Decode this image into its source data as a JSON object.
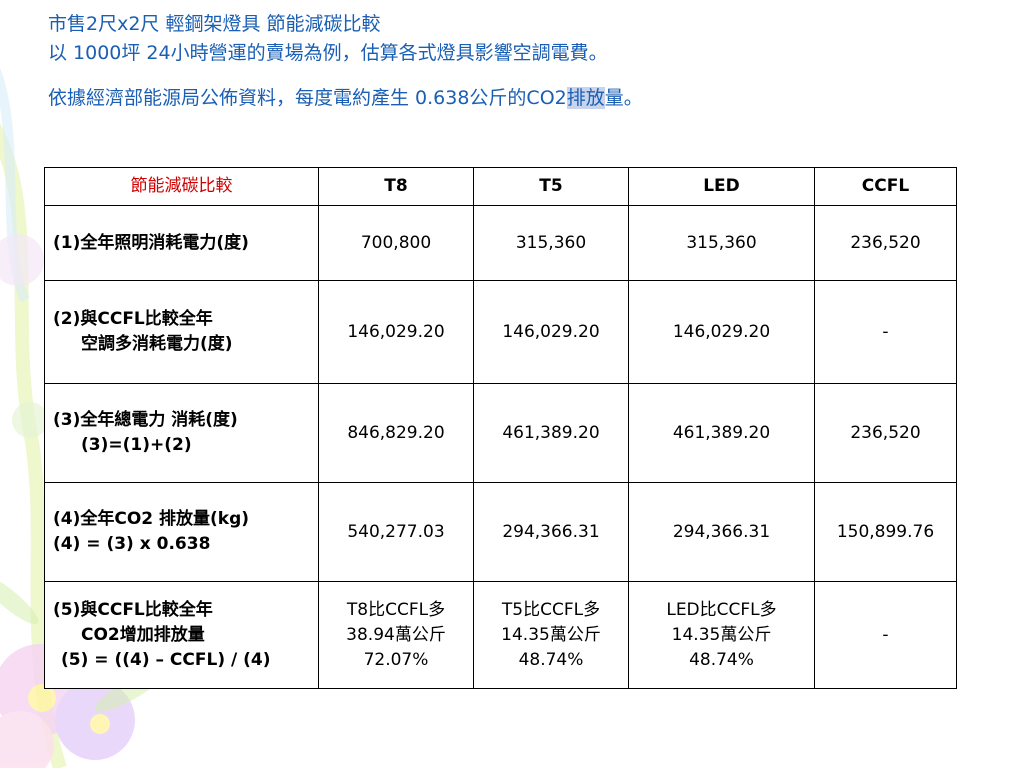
{
  "header": {
    "line1": "市售2尺x2尺 輕鋼架燈具  節能減碳比較",
    "line2": "以 1000坪 24小時營運的賣場為例，估算各式燈具影響空調電費。",
    "line3_pre": "依據經濟部能源局公佈資料，每度電約產生 0.638公斤的CO2",
    "line3_hl": "排放",
    "line3_post": "量。"
  },
  "table": {
    "corner": "節能減碳比較",
    "columns": [
      "T8",
      "T5",
      "LED",
      "CCFL"
    ],
    "rows": [
      {
        "label": [
          "(1)全年照明消耗電力(度)"
        ],
        "cells": [
          [
            "700,800"
          ],
          [
            "315,360"
          ],
          [
            "315,360"
          ],
          [
            "236,520"
          ]
        ]
      },
      {
        "label": [
          "(2)與CCFL比較全年",
          "空調多消耗電力(度)"
        ],
        "cells": [
          [
            "146,029.20"
          ],
          [
            "146,029.20"
          ],
          [
            "146,029.20"
          ],
          [
            "-"
          ]
        ]
      },
      {
        "label": [
          "(3)全年總電力 消耗(度)",
          "(3)=(1)+(2)"
        ],
        "cells": [
          [
            "846,829.20"
          ],
          [
            "461,389.20"
          ],
          [
            "461,389.20"
          ],
          [
            "236,520"
          ]
        ]
      },
      {
        "label": [
          "(4)全年CO2 排放量(kg)",
          "(4) = (3) x 0.638"
        ],
        "cells": [
          [
            "540,277.03"
          ],
          [
            "294,366.31"
          ],
          [
            "294,366.31"
          ],
          [
            "150,899.76"
          ]
        ]
      },
      {
        "label": [
          "(5)與CCFL比較全年",
          "CO2增加排放量",
          "(5) = ((4) – CCFL) / (4)"
        ],
        "cells": [
          [
            "T8比CCFL多",
            "38.94萬公斤",
            "72.07%"
          ],
          [
            "T5比CCFL多",
            "14.35萬公斤",
            "48.74%"
          ],
          [
            "LED比CCFL多",
            "14.35萬公斤",
            "48.74%"
          ],
          [
            "-"
          ]
        ]
      }
    ]
  },
  "colors": {
    "header_text": "#1a5fb4",
    "corner_text": "#d00000",
    "highlight": "#c9d4ec"
  }
}
